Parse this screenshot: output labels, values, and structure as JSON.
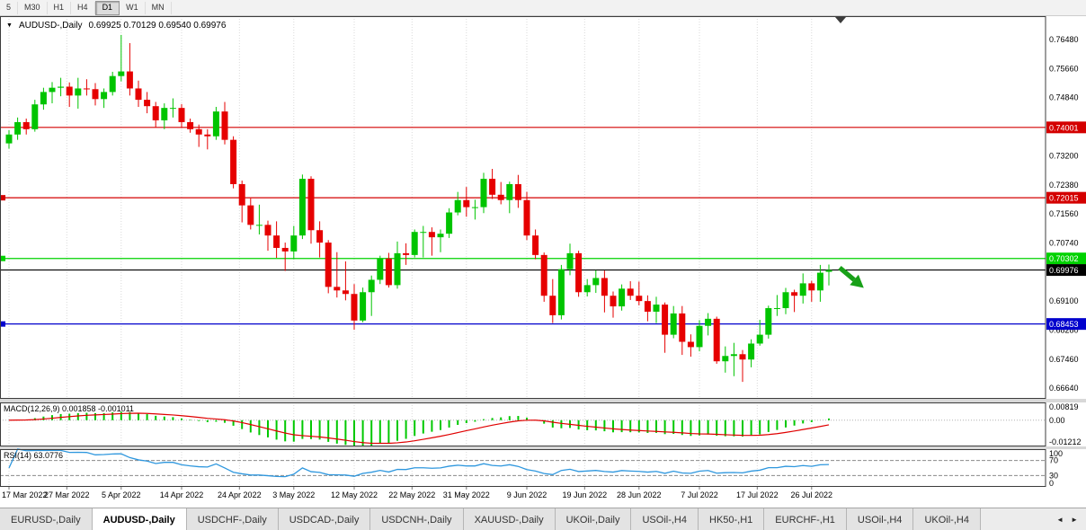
{
  "toolbar": {
    "periods": [
      "5",
      "M30",
      "H1",
      "H4",
      "D1",
      "W1",
      "MN"
    ],
    "active": "D1"
  },
  "chart": {
    "title_symbol": "AUDUSD-,Daily",
    "title_ohlc": "0.69925 0.70129 0.69540 0.69976"
  },
  "price_scale": {
    "labels": [
      "0.76480",
      "0.75660",
      "0.74840",
      "0.73200",
      "0.72380",
      "0.71560",
      "0.70740",
      "0.69100",
      "0.68280",
      "0.67460",
      "0.66640"
    ]
  },
  "hlines": [
    {
      "label": "0.74001",
      "price": 0.74001,
      "color": "#d40000",
      "marker": false
    },
    {
      "label": "0.72015",
      "price": 0.72015,
      "color": "#d40000",
      "marker": true
    },
    {
      "label": "0.70302",
      "price": 0.70302,
      "color": "#00d200",
      "marker": true
    },
    {
      "label": "0.69976",
      "price": 0.69976,
      "color": "#000000",
      "marker": false
    },
    {
      "label": "0.68453",
      "price": 0.68453,
      "color": "#0000cd",
      "marker": true
    }
  ],
  "macd_panel": {
    "label": "MACD(12,26,9) 0.001858 -0.001011",
    "scale_labels": [
      "0.00819",
      "0.00",
      "-0.01212"
    ],
    "scale_values": [
      0.00819,
      0,
      -0.01212
    ],
    "range": [
      -0.01212,
      0.00819
    ],
    "histogram_color": "#00c800",
    "signal_color": "#e00000"
  },
  "rsi_panel": {
    "label": "RSI(14) 63.0776",
    "value": 63.0776,
    "scale_labels": [
      "100",
      "70",
      "30",
      "0"
    ],
    "levels": [
      70,
      30
    ],
    "line_color": "#2e97de"
  },
  "x_axis": {
    "labels": [
      "17 Mar 2022",
      "27 Mar 2022",
      "5 Apr 2022",
      "14 Apr 2022",
      "24 Apr 2022",
      "3 May 2022",
      "12 May 2022",
      "22 May 2022",
      "31 May 2022",
      "9 Jun 2022",
      "19 Jun 2022",
      "28 Jun 2022",
      "7 Jul 2022",
      "17 Jul 2022",
      "26 Jul 2022"
    ]
  },
  "tabs": {
    "items": [
      "EURUSD-,Daily",
      "AUDUSD-,Daily",
      "USDCHF-,Daily",
      "USDCAD-,Daily",
      "USDCNH-,Daily",
      "XAUUSD-,Daily",
      "UKOil-,Daily",
      "USOil-,H4",
      "HK50-,H1",
      "EURCHF-,H1",
      "USOil-,H4",
      "UKOil-,H4"
    ],
    "active_index": 1,
    "scroll_left": "◄",
    "scroll_right": "►"
  },
  "annotation": {
    "type": "arrow",
    "direction": "down-right",
    "color": "#18a018"
  },
  "chart_data": {
    "type": "candlestick",
    "symbol": "AUDUSD",
    "timeframe": "Daily",
    "ohlc_current": {
      "open": 0.69925,
      "high": 0.70129,
      "low": 0.6954,
      "close": 0.69976
    },
    "ylim": [
      0.6634,
      0.7714
    ],
    "bull_color": "#00c400",
    "bear_color": "#e60000",
    "hlines": [
      0.74001,
      0.72015,
      0.70302,
      0.69976,
      0.68453
    ],
    "x_tick_indices": [
      0,
      6.7,
      13,
      20,
      26.7,
      33,
      40,
      46.7,
      53,
      60,
      66.7,
      73,
      80,
      86.7,
      93
    ],
    "indicators": [
      {
        "name": "MACD",
        "params": [
          12,
          26,
          9
        ],
        "current": "0.001858 -0.001011"
      },
      {
        "name": "RSI",
        "params": [
          14
        ],
        "current": 63.0776
      }
    ],
    "candles": [
      [
        "2022-03-17",
        0.7355,
        0.7392,
        0.734,
        0.738
      ],
      [
        "2022-03-18",
        0.738,
        0.7428,
        0.7365,
        0.7415
      ],
      [
        "2022-03-21",
        0.7415,
        0.7425,
        0.738,
        0.7395
      ],
      [
        "2022-03-22",
        0.7395,
        0.7478,
        0.7388,
        0.7465
      ],
      [
        "2022-03-23",
        0.7465,
        0.7512,
        0.745,
        0.75
      ],
      [
        "2022-03-24",
        0.75,
        0.7528,
        0.7468,
        0.7512
      ],
      [
        "2022-03-25",
        0.7512,
        0.754,
        0.7488,
        0.7515
      ],
      [
        "2022-03-28",
        0.7515,
        0.7527,
        0.7458,
        0.749
      ],
      [
        "2022-03-29",
        0.749,
        0.754,
        0.7453,
        0.751
      ],
      [
        "2022-03-30",
        0.751,
        0.7536,
        0.749,
        0.7508
      ],
      [
        "2022-03-31",
        0.7508,
        0.7525,
        0.7462,
        0.748
      ],
      [
        "2022-04-01",
        0.748,
        0.751,
        0.7455,
        0.75
      ],
      [
        "2022-04-04",
        0.75,
        0.7557,
        0.749,
        0.7545
      ],
      [
        "2022-04-05",
        0.7545,
        0.7661,
        0.753,
        0.7558
      ],
      [
        "2022-04-06",
        0.7558,
        0.7638,
        0.749,
        0.751
      ],
      [
        "2022-04-07",
        0.751,
        0.7532,
        0.7458,
        0.7478
      ],
      [
        "2022-04-08",
        0.7478,
        0.75,
        0.744,
        0.746
      ],
      [
        "2022-04-11",
        0.746,
        0.7472,
        0.74,
        0.742
      ],
      [
        "2022-04-12",
        0.742,
        0.7468,
        0.7395,
        0.7455
      ],
      [
        "2022-04-13",
        0.7455,
        0.7482,
        0.7428,
        0.7455
      ],
      [
        "2022-04-14",
        0.7455,
        0.7466,
        0.7398,
        0.7415
      ],
      [
        "2022-04-15",
        0.7415,
        0.7425,
        0.7385,
        0.7395
      ],
      [
        "2022-04-18",
        0.7395,
        0.7408,
        0.7345,
        0.738
      ],
      [
        "2022-04-19",
        0.738,
        0.7395,
        0.7338,
        0.7375
      ],
      [
        "2022-04-20",
        0.7375,
        0.7458,
        0.7365,
        0.7445
      ],
      [
        "2022-04-21",
        0.7445,
        0.7472,
        0.7352,
        0.7365
      ],
      [
        "2022-04-22",
        0.7365,
        0.7375,
        0.7228,
        0.724
      ],
      [
        "2022-04-25",
        0.724,
        0.725,
        0.7132,
        0.718
      ],
      [
        "2022-04-26",
        0.718,
        0.72,
        0.7112,
        0.7125
      ],
      [
        "2022-04-27",
        0.7125,
        0.7182,
        0.7098,
        0.7125
      ],
      [
        "2022-04-28",
        0.7125,
        0.7137,
        0.7052,
        0.7095
      ],
      [
        "2022-04-29",
        0.7095,
        0.7135,
        0.7032,
        0.706
      ],
      [
        "2022-05-02",
        0.706,
        0.7075,
        0.6995,
        0.705
      ],
      [
        "2022-05-03",
        0.705,
        0.7122,
        0.7028,
        0.7095
      ],
      [
        "2022-05-04",
        0.7095,
        0.7267,
        0.7085,
        0.7255
      ],
      [
        "2022-05-05",
        0.7255,
        0.7262,
        0.7072,
        0.711
      ],
      [
        "2022-05-06",
        0.711,
        0.7135,
        0.7033,
        0.7075
      ],
      [
        "2022-05-09",
        0.7075,
        0.7082,
        0.6932,
        0.695
      ],
      [
        "2022-05-10",
        0.695,
        0.7048,
        0.692,
        0.694
      ],
      [
        "2022-05-11",
        0.694,
        0.7022,
        0.6912,
        0.693
      ],
      [
        "2022-05-12",
        0.693,
        0.6958,
        0.6829,
        0.6855
      ],
      [
        "2022-05-13",
        0.6855,
        0.6948,
        0.685,
        0.6935
      ],
      [
        "2022-05-16",
        0.6935,
        0.6982,
        0.6868,
        0.697
      ],
      [
        "2022-05-17",
        0.697,
        0.7038,
        0.6958,
        0.703
      ],
      [
        "2022-05-18",
        0.703,
        0.7046,
        0.6948,
        0.6955
      ],
      [
        "2022-05-19",
        0.6955,
        0.7078,
        0.6945,
        0.7045
      ],
      [
        "2022-05-20",
        0.7045,
        0.7073,
        0.7012,
        0.704
      ],
      [
        "2022-05-23",
        0.704,
        0.7112,
        0.7033,
        0.7105
      ],
      [
        "2022-05-24",
        0.7105,
        0.7122,
        0.7033,
        0.7105
      ],
      [
        "2022-05-25",
        0.7105,
        0.7118,
        0.7038,
        0.709
      ],
      [
        "2022-05-26",
        0.709,
        0.7112,
        0.7048,
        0.71
      ],
      [
        "2022-05-27",
        0.71,
        0.7172,
        0.7088,
        0.716
      ],
      [
        "2022-05-30",
        0.716,
        0.7218,
        0.7152,
        0.7195
      ],
      [
        "2022-05-31",
        0.7195,
        0.7232,
        0.7148,
        0.7175
      ],
      [
        "2022-06-01",
        0.7175,
        0.7196,
        0.714,
        0.7175
      ],
      [
        "2022-06-02",
        0.7175,
        0.7272,
        0.7158,
        0.7255
      ],
      [
        "2022-06-03",
        0.7255,
        0.7283,
        0.7198,
        0.721
      ],
      [
        "2022-06-06",
        0.721,
        0.7246,
        0.7183,
        0.7195
      ],
      [
        "2022-06-07",
        0.7195,
        0.7247,
        0.7158,
        0.724
      ],
      [
        "2022-06-08",
        0.724,
        0.7266,
        0.7173,
        0.7195
      ],
      [
        "2022-06-09",
        0.7195,
        0.7218,
        0.7082,
        0.7095
      ],
      [
        "2022-06-10",
        0.7095,
        0.7112,
        0.7028,
        0.704
      ],
      [
        "2022-06-13",
        0.704,
        0.7047,
        0.6908,
        0.6925
      ],
      [
        "2022-06-14",
        0.6925,
        0.6972,
        0.6848,
        0.687
      ],
      [
        "2022-06-15",
        0.687,
        0.7012,
        0.6858,
        0.7
      ],
      [
        "2022-06-16",
        0.7,
        0.7072,
        0.6983,
        0.7045
      ],
      [
        "2022-06-17",
        0.7045,
        0.7052,
        0.6922,
        0.6935
      ],
      [
        "2022-06-20",
        0.6935,
        0.6972,
        0.6923,
        0.6955
      ],
      [
        "2022-06-21",
        0.6955,
        0.6997,
        0.6933,
        0.6975
      ],
      [
        "2022-06-22",
        0.6975,
        0.6996,
        0.6878,
        0.6925
      ],
      [
        "2022-06-23",
        0.6925,
        0.6937,
        0.6863,
        0.6895
      ],
      [
        "2022-06-24",
        0.6895,
        0.6957,
        0.6883,
        0.6945
      ],
      [
        "2022-06-27",
        0.6945,
        0.6966,
        0.6913,
        0.6925
      ],
      [
        "2022-06-28",
        0.6925,
        0.6965,
        0.6898,
        0.691
      ],
      [
        "2022-06-29",
        0.691,
        0.6926,
        0.6853,
        0.688
      ],
      [
        "2022-06-30",
        0.688,
        0.6922,
        0.6848,
        0.69
      ],
      [
        "2022-07-01",
        0.69,
        0.6906,
        0.6764,
        0.6815
      ],
      [
        "2022-07-04",
        0.6815,
        0.6896,
        0.6805,
        0.6875
      ],
      [
        "2022-07-05",
        0.6875,
        0.6896,
        0.6758,
        0.6795
      ],
      [
        "2022-07-06",
        0.6795,
        0.6816,
        0.6753,
        0.678
      ],
      [
        "2022-07-07",
        0.678,
        0.6856,
        0.6768,
        0.684
      ],
      [
        "2022-07-08",
        0.684,
        0.6876,
        0.6813,
        0.686
      ],
      [
        "2022-07-11",
        0.686,
        0.6866,
        0.6733,
        0.674
      ],
      [
        "2022-07-12",
        0.674,
        0.6782,
        0.6708,
        0.6755
      ],
      [
        "2022-07-13",
        0.6755,
        0.6792,
        0.6698,
        0.676
      ],
      [
        "2022-07-14",
        0.676,
        0.6772,
        0.6682,
        0.6745
      ],
      [
        "2022-07-15",
        0.6745,
        0.6802,
        0.6723,
        0.679
      ],
      [
        "2022-07-18",
        0.679,
        0.6857,
        0.6784,
        0.6815
      ],
      [
        "2022-07-19",
        0.6815,
        0.6897,
        0.6804,
        0.689
      ],
      [
        "2022-07-20",
        0.689,
        0.6927,
        0.6868,
        0.689
      ],
      [
        "2022-07-21",
        0.689,
        0.6947,
        0.6873,
        0.6935
      ],
      [
        "2022-07-22",
        0.6935,
        0.6942,
        0.6879,
        0.6925
      ],
      [
        "2022-07-25",
        0.6925,
        0.6988,
        0.6903,
        0.696
      ],
      [
        "2022-07-26",
        0.696,
        0.6967,
        0.6908,
        0.694
      ],
      [
        "2022-07-27",
        0.694,
        0.7012,
        0.6908,
        0.699
      ],
      [
        "2022-07-28",
        0.69925,
        0.70129,
        0.6954,
        0.69976
      ]
    ]
  }
}
